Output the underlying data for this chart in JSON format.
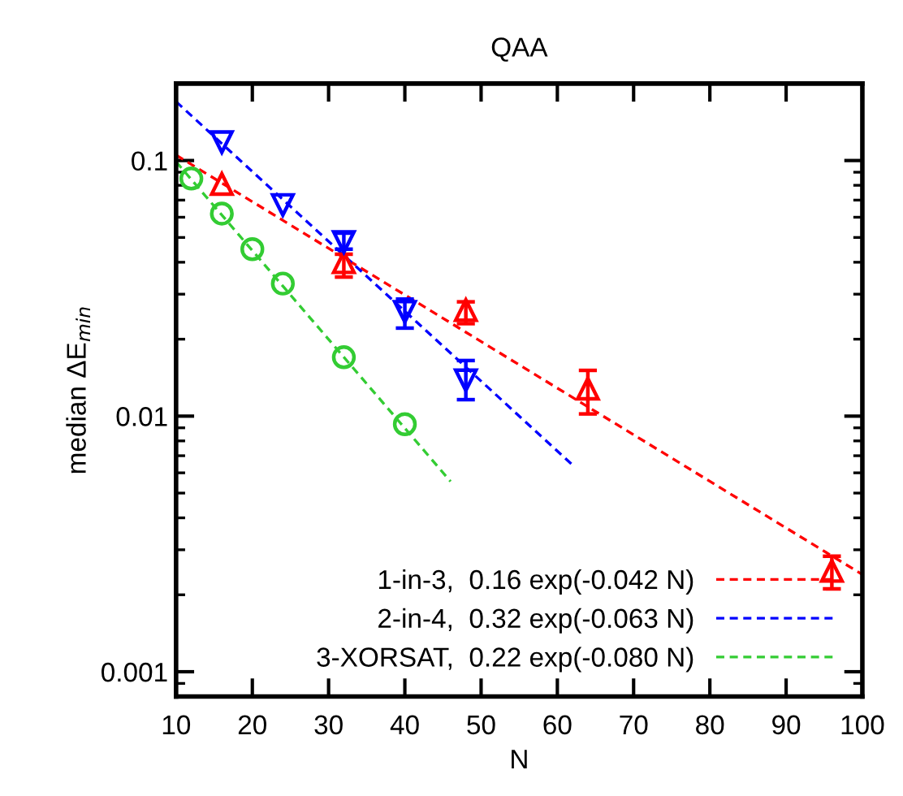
{
  "chart_data": {
    "type": "scatter",
    "title": "QAA",
    "xlabel": "N",
    "ylabel": "median ΔE$_{min}$",
    "log": "y",
    "xlim": [
      10,
      100
    ],
    "xticks": [
      10,
      20,
      30,
      40,
      50,
      60,
      70,
      80,
      90,
      100
    ],
    "ylim": [
      0.0008,
      0.2
    ],
    "yticks": [
      0.001,
      0.01,
      0.1
    ],
    "grid": false,
    "legend": "bottom right",
    "series": [
      {
        "color": "#ff0000",
        "marker": "triangle",
        "x": [
          16,
          32,
          48,
          64,
          96
        ],
        "values": [
          0.081,
          0.04,
          0.026,
          0.0128,
          0.00248
        ],
        "errors": [
          null,
          [
            0.035,
            0.043
          ],
          [
            0.023,
            0.028
          ],
          [
            0.0102,
            0.0151
          ],
          [
            0.00211,
            0.00283
          ]
        ]
      },
      {
        "color": "#0000ff",
        "marker": "triangle_down",
        "x": [
          16,
          24,
          32,
          40,
          48
        ],
        "values": [
          0.118,
          0.067,
          0.048,
          0.0256,
          0.0138
        ],
        "errors": [
          null,
          null,
          [
            0.045,
            0.052
          ],
          [
            0.0221,
            0.0287
          ],
          [
            0.0116,
            0.0165
          ]
        ]
      },
      {
        "color": "#33cc33",
        "marker": "circle",
        "x": [
          12,
          16,
          20,
          24,
          32,
          40
        ],
        "values": [
          0.085,
          0.062,
          0.045,
          0.033,
          0.017,
          0.0093
        ]
      },
      {
        "type": "line",
        "name": "1-in-3,  0.16 exp(-0.042 N)",
        "color": "#ff0000",
        "line_style": "dashed",
        "x": [
          10,
          100
        ],
        "values": [
          0.105,
          0.0024
        ]
      },
      {
        "type": "line",
        "name": "2-in-4,  0.32 exp(-0.063 N)",
        "color": "#0000ff",
        "line_style": "dashed",
        "x": [
          10,
          62
        ],
        "values": [
          0.17,
          0.00644
        ]
      },
      {
        "type": "line",
        "name": "3-XORSAT,  0.22 exp(-0.080 N)",
        "color": "#33cc33",
        "line_style": "dashed",
        "x": [
          10,
          46
        ],
        "values": [
          0.0989,
          0.00555
        ]
      }
    ]
  }
}
